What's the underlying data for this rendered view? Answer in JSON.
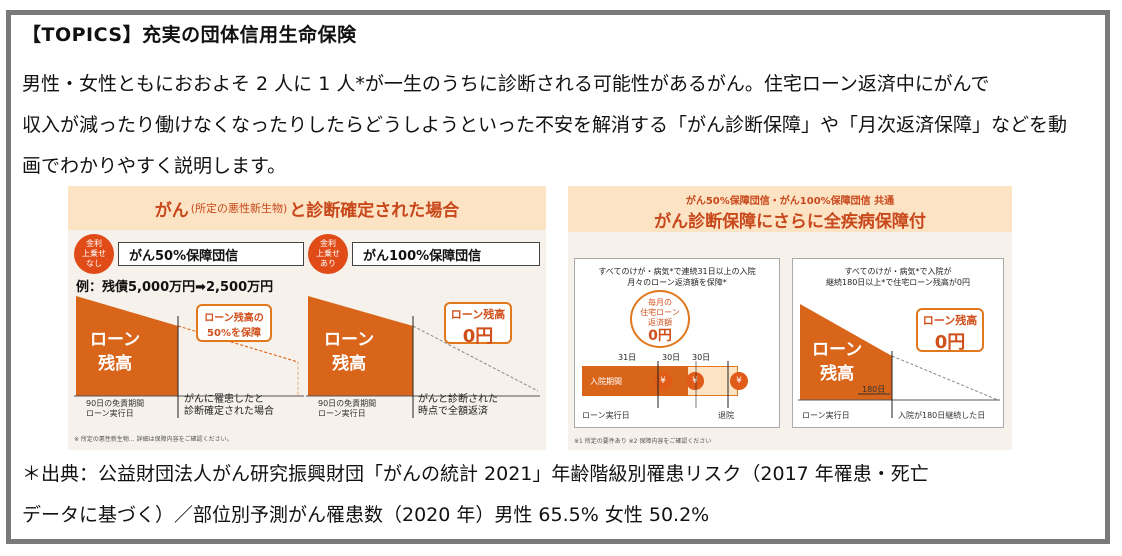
{
  "title": "【TOPICS】充実の団体信用生命保険",
  "body_lines": [
    "男性・女性ともにおおよそ 2 人に 1 人*が一生のうちに診断される可能性があるがん。住宅ローン返済中にがんで",
    "収入が減ったり働けなくなったりしたらどうしようといった不安を解消する「がん診断保障」や「月次返済保障」などを動",
    "画でわかりやすく説明します。"
  ],
  "left_panel": {
    "header_pre": "がん",
    "header_small": "(所定の悪性新生物)",
    "header_post": "と診断確定された場合",
    "badge1": [
      "金利",
      "上乗せ",
      "なし"
    ],
    "plan1": "がん50%保障団信",
    "badge2": [
      "金利",
      "上乗せ",
      "あり"
    ],
    "plan2": "がん100%保障団信",
    "example": "例：残債5,000万円➡2,500万円",
    "loan_label_1": "ローン",
    "loan_label_2": "残高",
    "callout50_1": "ローン残高の",
    "callout50_2": "50%を保障",
    "callout0_1": "ローン残高",
    "callout0_2": "0円",
    "exemption": "90日の免責期間",
    "loan_start": "ローン実行日",
    "caption1_1": "がんに罹患したと",
    "caption1_2": "診断確定された場合",
    "caption2_1": "がんと診断された",
    "caption2_2": "時点で全額返済",
    "footnote": "※ 所定の悪性新生物... 詳細は保障内容をご確認ください。"
  },
  "right_panel": {
    "header_line1": "がん50%保障団信・がん100%保障団信 共通",
    "header_line2": "がん診断保障にさらに全疾病保障付",
    "sub1_cap1": "すべてのけが・病気*で連続31日以上の入院",
    "sub1_cap2": "月々のローン返済額を保障*",
    "monthly_1": "毎月の",
    "monthly_2": "住宅ローン",
    "monthly_3": "返済額",
    "monthly_4": "0円",
    "days": [
      "31日",
      "30日",
      "30日"
    ],
    "hospital": "入院期間",
    "yen": "¥",
    "loan_start": "ローン実行日",
    "discharge": "退院",
    "sub2_cap1": "すべてのけが・病気*で入院が",
    "sub2_cap2": "継続180日以上*で住宅ローン残高が0円",
    "loan_label_1": "ローン",
    "loan_label_2": "残高",
    "callout0_1": "ローン残高",
    "callout0_2": "0円",
    "days180": "180日",
    "admission": "入院が180日継続した日",
    "footnote": "※1 所定の要件あり ※2 保障内容をご確認ください"
  },
  "footnote_lines": [
    "＊出典：公益財団法人がん研究振興財団「がんの統計 2021」年齢階級別罹患リスク（2017 年罹患・死亡",
    "データに基づく）／部位別予測がん罹患数（2020 年）男性 65.5% 女性 50.2%"
  ],
  "colors": {
    "accent_orange": "#e04b18",
    "loan_orange": "#d9651a",
    "panel_bg": "#f6f1ea",
    "header_bg": "#fbe3c4",
    "frame_gray": "#7a7a7a"
  }
}
